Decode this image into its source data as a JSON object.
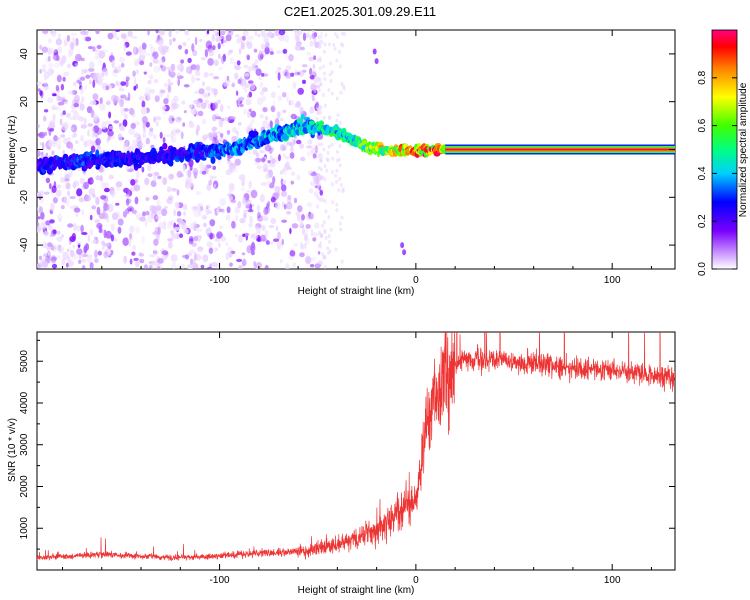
{
  "title": "C2E1.2025.301.09.29.E11",
  "chart_data": [
    {
      "type": "heatmap",
      "xlabel": "Height of straight line (km)",
      "ylabel": "Frequency (Hz)",
      "xlim": [
        -193,
        132
      ],
      "ylim": [
        -50,
        50
      ],
      "xticks": [
        -100,
        0,
        100
      ],
      "yticks": [
        -40,
        -20,
        0,
        20,
        40
      ],
      "colorbar": {
        "label": "Normalized spectral amplitude",
        "range": [
          0,
          1
        ],
        "ticks": [
          0.0,
          0.2,
          0.4,
          0.6,
          0.8
        ]
      },
      "ridge": {
        "description": "dominant frequency track",
        "x": [
          -193,
          -170,
          -150,
          -130,
          -110,
          -95,
          -80,
          -65,
          -55,
          -45,
          -38,
          -30,
          -25,
          -18,
          -12,
          -5,
          0,
          5,
          10,
          15,
          132
        ],
        "y": [
          -6,
          -5,
          -4,
          -3,
          -1,
          0,
          4,
          8,
          10,
          8,
          6,
          3,
          1,
          0,
          -1,
          0,
          -1,
          0,
          0,
          0,
          0
        ],
        "amplitude": [
          0.3,
          0.35,
          0.3,
          0.3,
          0.35,
          0.4,
          0.45,
          0.5,
          0.5,
          0.55,
          0.6,
          0.6,
          0.7,
          0.8,
          0.8,
          0.9,
          0.95,
          1.0,
          1.0,
          1.0,
          1.0
        ]
      }
    },
    {
      "type": "line",
      "xlabel": "Height of straight line (km)",
      "ylabel": "SNR (10 * v/v)",
      "xlim": [
        -193,
        132
      ],
      "ylim": [
        0,
        5700
      ],
      "xticks": [
        -100,
        0,
        100
      ],
      "yticks": [
        1000,
        2000,
        3000,
        4000,
        5000
      ],
      "series": [
        {
          "name": "SNR",
          "color": "#ee3333",
          "x": [
            -193,
            -180,
            -160,
            -140,
            -120,
            -100,
            -90,
            -80,
            -70,
            -60,
            -50,
            -40,
            -30,
            -20,
            -10,
            -5,
            0,
            2,
            5,
            8,
            10,
            15,
            20,
            25,
            30,
            40,
            60,
            80,
            100,
            110,
            120,
            132
          ],
          "y": [
            300,
            320,
            380,
            330,
            300,
            330,
            380,
            400,
            420,
            450,
            500,
            600,
            750,
            950,
            1300,
            1450,
            1700,
            2300,
            3300,
            3900,
            4200,
            4600,
            4900,
            5000,
            5000,
            5050,
            4950,
            4850,
            4800,
            4750,
            4650,
            4600
          ]
        }
      ]
    }
  ]
}
